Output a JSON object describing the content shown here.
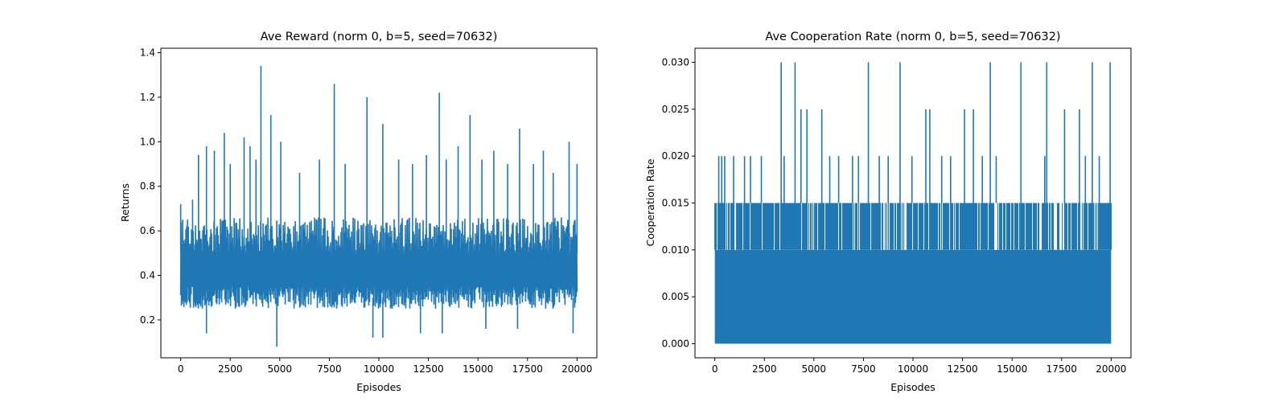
{
  "chart_data": [
    {
      "type": "line",
      "title": "Ave Reward (norm 0, b=5, seed=70632)",
      "xlabel": "Episodes",
      "ylabel": "Returns",
      "xlim": [
        -1000,
        21000
      ],
      "ylim": [
        0.03,
        1.42
      ],
      "xticks": [
        0,
        2500,
        5000,
        7500,
        10000,
        12500,
        15000,
        17500,
        20000
      ],
      "xtick_labels": [
        "0",
        "2500",
        "5000",
        "7500",
        "10000",
        "12500",
        "15000",
        "17500",
        "20000"
      ],
      "yticks": [
        0.2,
        0.4,
        0.6,
        0.8,
        1.0,
        1.2,
        1.4
      ],
      "ytick_labels": [
        "0.2",
        "0.4",
        "0.6",
        "0.8",
        "1.0",
        "1.2",
        "1.4"
      ],
      "grid": false,
      "series": [
        {
          "color": "#1f77b4",
          "x_range": [
            0,
            20000
          ],
          "typical_low": 0.25,
          "typical_high": 0.62,
          "peaks": [
            [
              0,
              0.72
            ],
            [
              600,
              0.74
            ],
            [
              900,
              0.94
            ],
            [
              1300,
              0.98
            ],
            [
              1700,
              0.96
            ],
            [
              2200,
              1.04
            ],
            [
              2500,
              0.9
            ],
            [
              3200,
              1.02
            ],
            [
              3500,
              0.98
            ],
            [
              3800,
              0.92
            ],
            [
              4050,
              1.34
            ],
            [
              4550,
              1.12
            ],
            [
              5050,
              1.0
            ],
            [
              6000,
              0.86
            ],
            [
              7000,
              0.92
            ],
            [
              7750,
              1.26
            ],
            [
              8300,
              0.9
            ],
            [
              9400,
              1.2
            ],
            [
              10200,
              1.08
            ],
            [
              11000,
              0.92
            ],
            [
              11700,
              0.9
            ],
            [
              12400,
              0.94
            ],
            [
              13050,
              1.22
            ],
            [
              13400,
              0.92
            ],
            [
              14000,
              0.98
            ],
            [
              14600,
              1.12
            ],
            [
              15200,
              0.92
            ],
            [
              15800,
              0.96
            ],
            [
              16500,
              0.9
            ],
            [
              17100,
              1.06
            ],
            [
              17800,
              0.9
            ],
            [
              18300,
              0.96
            ],
            [
              18800,
              0.86
            ],
            [
              19600,
              1.0
            ],
            [
              20000,
              0.9
            ]
          ],
          "troughs": [
            [
              1300,
              0.14
            ],
            [
              4850,
              0.08
            ],
            [
              9700,
              0.12
            ],
            [
              10200,
              0.12
            ],
            [
              12100,
              0.14
            ],
            [
              13200,
              0.14
            ],
            [
              15400,
              0.16
            ],
            [
              17000,
              0.16
            ],
            [
              19800,
              0.14
            ]
          ]
        }
      ]
    },
    {
      "type": "line",
      "title": "Ave Cooperation Rate (norm 0, b=5, seed=70632)",
      "xlabel": "Episodes",
      "ylabel": "Cooperation Rate",
      "xlim": [
        -1000,
        21000
      ],
      "ylim": [
        -0.0015,
        0.0315
      ],
      "xticks": [
        0,
        2500,
        5000,
        7500,
        10000,
        12500,
        15000,
        17500,
        20000
      ],
      "xtick_labels": [
        "0",
        "2500",
        "5000",
        "7500",
        "10000",
        "12500",
        "15000",
        "17500",
        "20000"
      ],
      "yticks": [
        0.0,
        0.005,
        0.01,
        0.015,
        0.02,
        0.025,
        0.03
      ],
      "ytick_labels": [
        "0.000",
        "0.005",
        "0.010",
        "0.015",
        "0.020",
        "0.025",
        "0.030"
      ],
      "grid": false,
      "series": [
        {
          "color": "#1f77b4",
          "x_range": [
            0,
            20000
          ],
          "solid_fill_top": 0.01,
          "frequent_level": 0.015,
          "spikes": [
            [
              200,
              0.02
            ],
            [
              350,
              0.02
            ],
            [
              500,
              0.02
            ],
            [
              950,
              0.02
            ],
            [
              1500,
              0.02
            ],
            [
              1800,
              0.02
            ],
            [
              2350,
              0.02
            ],
            [
              3350,
              0.03
            ],
            [
              3500,
              0.02
            ],
            [
              4050,
              0.03
            ],
            [
              4350,
              0.025
            ],
            [
              4650,
              0.025
            ],
            [
              5400,
              0.025
            ],
            [
              5800,
              0.02
            ],
            [
              6250,
              0.02
            ],
            [
              6950,
              0.02
            ],
            [
              7250,
              0.02
            ],
            [
              7750,
              0.03
            ],
            [
              8300,
              0.02
            ],
            [
              8750,
              0.02
            ],
            [
              9350,
              0.03
            ],
            [
              9950,
              0.02
            ],
            [
              10650,
              0.025
            ],
            [
              10850,
              0.025
            ],
            [
              11450,
              0.02
            ],
            [
              11900,
              0.02
            ],
            [
              12600,
              0.025
            ],
            [
              13050,
              0.025
            ],
            [
              13500,
              0.02
            ],
            [
              13900,
              0.03
            ],
            [
              14200,
              0.02
            ],
            [
              15450,
              0.03
            ],
            [
              16650,
              0.02
            ],
            [
              16750,
              0.03
            ],
            [
              17650,
              0.025
            ],
            [
              18400,
              0.025
            ],
            [
              18700,
              0.02
            ],
            [
              19050,
              0.03
            ],
            [
              19400,
              0.02
            ],
            [
              19950,
              0.03
            ]
          ]
        }
      ]
    }
  ]
}
